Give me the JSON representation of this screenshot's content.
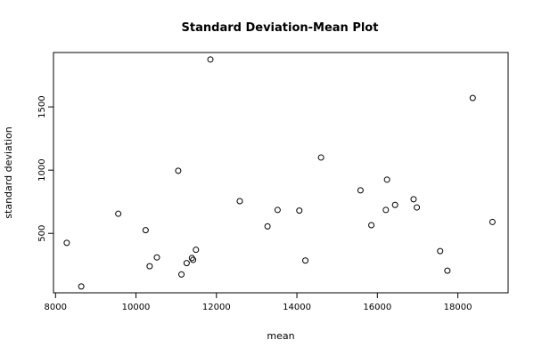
{
  "chart_data": {
    "type": "scatter",
    "title": "Standard Deviation-Mean Plot",
    "xlabel": "mean",
    "ylabel": "standard deviation",
    "xlim": [
      7950,
      19250
    ],
    "ylim": [
      30,
      1930
    ],
    "xticks": [
      8000,
      10000,
      12000,
      14000,
      16000,
      18000
    ],
    "yticks": [
      500,
      1000,
      1500
    ],
    "grid": false,
    "marker": "open-circle",
    "points": [
      {
        "x": 8280,
        "y": 425
      },
      {
        "x": 8640,
        "y": 80
      },
      {
        "x": 9560,
        "y": 655
      },
      {
        "x": 10240,
        "y": 525
      },
      {
        "x": 10340,
        "y": 240
      },
      {
        "x": 10520,
        "y": 310
      },
      {
        "x": 11050,
        "y": 995
      },
      {
        "x": 11130,
        "y": 175
      },
      {
        "x": 11260,
        "y": 265
      },
      {
        "x": 11390,
        "y": 305
      },
      {
        "x": 11420,
        "y": 290
      },
      {
        "x": 11490,
        "y": 370
      },
      {
        "x": 11850,
        "y": 1875
      },
      {
        "x": 12580,
        "y": 755
      },
      {
        "x": 13270,
        "y": 555
      },
      {
        "x": 13520,
        "y": 685
      },
      {
        "x": 14060,
        "y": 680
      },
      {
        "x": 14210,
        "y": 285
      },
      {
        "x": 14600,
        "y": 1100
      },
      {
        "x": 15580,
        "y": 840
      },
      {
        "x": 15850,
        "y": 565
      },
      {
        "x": 16210,
        "y": 685
      },
      {
        "x": 16240,
        "y": 925
      },
      {
        "x": 16440,
        "y": 725
      },
      {
        "x": 16900,
        "y": 770
      },
      {
        "x": 16980,
        "y": 705
      },
      {
        "x": 17560,
        "y": 360
      },
      {
        "x": 17740,
        "y": 205
      },
      {
        "x": 18370,
        "y": 1570
      },
      {
        "x": 18860,
        "y": 590
      }
    ]
  }
}
